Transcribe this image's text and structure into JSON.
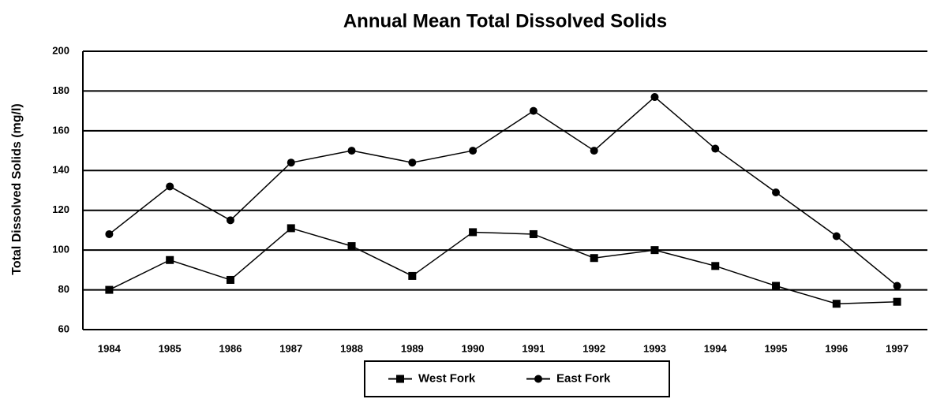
{
  "chart_data": {
    "type": "line",
    "title": "Annual Mean Total Dissolved Solids",
    "y_label": "Total Dissolved Solids (mg/l)",
    "categories": [
      "1984",
      "1985",
      "1986",
      "1987",
      "1988",
      "1989",
      "1990",
      "1991",
      "1992",
      "1993",
      "1994",
      "1995",
      "1996",
      "1997"
    ],
    "series": [
      {
        "name": "West Fork",
        "color": "#000000",
        "marker": "square",
        "values": [
          80,
          95,
          85,
          111,
          102,
          87,
          109,
          108,
          96,
          100,
          92,
          82,
          73,
          74
        ]
      },
      {
        "name": "East Fork",
        "color": "#000000",
        "marker": "circle",
        "values": [
          108,
          132,
          115,
          144,
          150,
          144,
          150,
          170,
          150,
          177,
          151,
          129,
          107,
          82
        ]
      }
    ],
    "ylim": [
      60,
      200
    ],
    "yticks": [
      60,
      80,
      100,
      120,
      140,
      160,
      180,
      200
    ],
    "grid": true,
    "legend": "bottom"
  }
}
